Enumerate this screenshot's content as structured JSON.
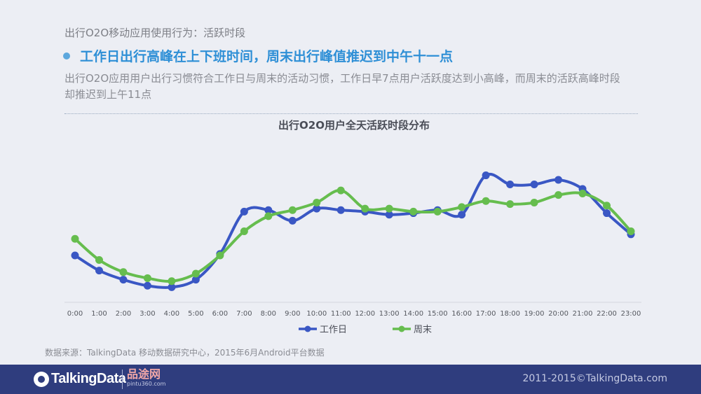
{
  "header": {
    "section_label": "出行O2O移动应用使用行为：活跃时段",
    "headline": "工作日出行高峰在上下班时间，周末出行峰值推迟到中午十一点",
    "description": "出行O2O应用用户出行习惯符合工作日与周末的活动习惯，工作日早7点用户活跃度达到小高峰，而周末的活跃高峰时段却推迟到上午11点"
  },
  "colors": {
    "accent": "#2E8FD6",
    "workday": "#3A57C4",
    "weekend": "#66BD4E",
    "footer": "#2F3D7E"
  },
  "chart_data": {
    "type": "line",
    "title": "出行O2O用户全天活跃时段分布",
    "xlabel": "",
    "ylabel": "",
    "y_axis_shown": false,
    "grid": false,
    "smooth": true,
    "legend_position": "bottom",
    "x": [
      "0:00",
      "1:00",
      "2:00",
      "3:00",
      "4:00",
      "5:00",
      "6:00",
      "7:00",
      "8:00",
      "9:00",
      "10:00",
      "11:00",
      "12:00",
      "13:00",
      "14:00",
      "15:00",
      "16:00",
      "17:00",
      "18:00",
      "19:00",
      "20:00",
      "21:00",
      "22:00",
      "23:00"
    ],
    "ylim": [
      0,
      100
    ],
    "series": [
      {
        "name": "工作日",
        "values": [
          31,
          21,
          15,
          11,
          10,
          15,
          32,
          60,
          61,
          54,
          62,
          61,
          60,
          58,
          59,
          61,
          58,
          84,
          78,
          78,
          81,
          75,
          59,
          45
        ]
      },
      {
        "name": "周末",
        "values": [
          42,
          28,
          20,
          16,
          14,
          19,
          31,
          47,
          57,
          61,
          66,
          74,
          62,
          62,
          60,
          60,
          63,
          67,
          65,
          66,
          71,
          72,
          64,
          47
        ]
      }
    ]
  },
  "footer": {
    "source": "数据来源：TalkingData 移动数据研究中心，2015年6月Android平台数据",
    "logo_text": "TalkingData",
    "partner_name": "品途网",
    "partner_url": "pintu360.com",
    "copyright": "2011-2015©TalkingData.com"
  }
}
